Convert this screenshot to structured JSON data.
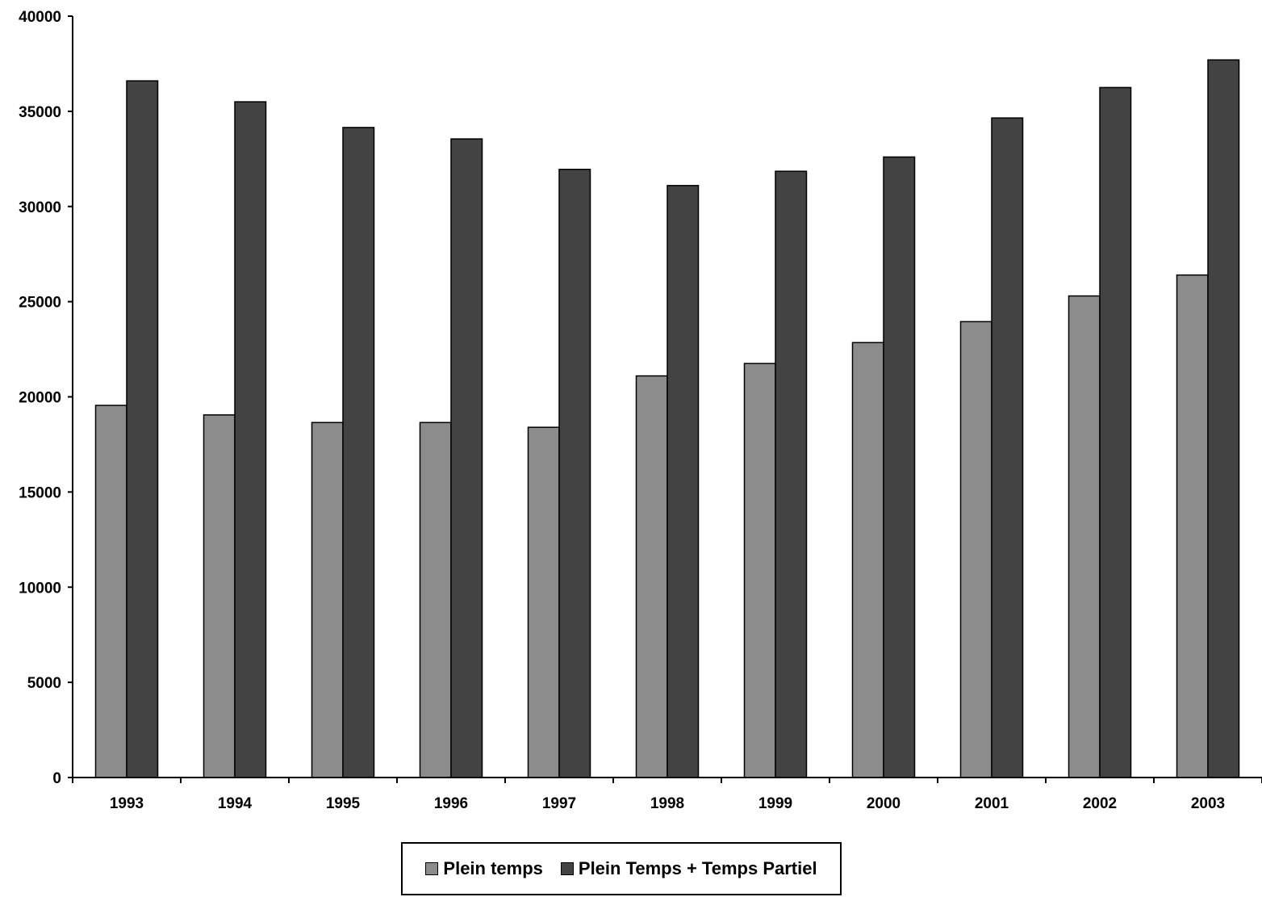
{
  "chart_data": {
    "type": "bar",
    "categories": [
      "1993",
      "1994",
      "1995",
      "1996",
      "1997",
      "1998",
      "1999",
      "2000",
      "2001",
      "2002",
      "2003"
    ],
    "series": [
      {
        "name": "Plein temps",
        "color": "#8c8c8c",
        "values": [
          19550,
          19050,
          18650,
          18650,
          18400,
          21100,
          21750,
          22850,
          23950,
          25300,
          26400
        ]
      },
      {
        "name": "Plein Temps + Temps Partiel",
        "color": "#434343",
        "values": [
          36600,
          35500,
          34150,
          33550,
          31950,
          31100,
          31850,
          32600,
          34650,
          36250,
          37700
        ]
      }
    ],
    "ylim": [
      0,
      40000
    ],
    "yticks": [
      "0",
      "5000",
      "10000",
      "15000",
      "20000",
      "25000",
      "30000",
      "35000",
      "40000"
    ],
    "title": "",
    "xlabel": "",
    "ylabel": "",
    "grid": false,
    "legend_position": "bottom"
  }
}
